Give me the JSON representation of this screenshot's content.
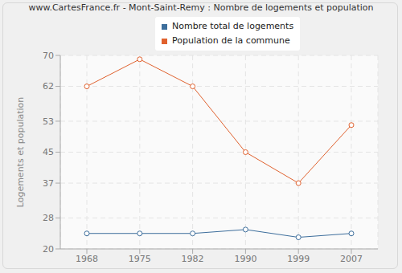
{
  "chart_data": {
    "type": "line",
    "title": "www.CartesFrance.fr - Mont-Saint-Remy : Nombre de logements et population",
    "y_label": "Logements et population",
    "categories": [
      "1968",
      "1975",
      "1982",
      "1990",
      "1999",
      "2007"
    ],
    "series": [
      {
        "name": "Nombre total de logements",
        "color": "#3d6e9c",
        "marker": "circle",
        "values": [
          24,
          24,
          24,
          25,
          23,
          24
        ]
      },
      {
        "name": "Population de la commune",
        "color": "#e0612e",
        "marker": "circle",
        "values": [
          62,
          69,
          62,
          45,
          37,
          52
        ]
      }
    ],
    "ylim": [
      20,
      70
    ],
    "yticks": [
      20,
      28,
      37,
      45,
      53,
      62,
      70
    ],
    "grid": true,
    "legend": "top"
  }
}
